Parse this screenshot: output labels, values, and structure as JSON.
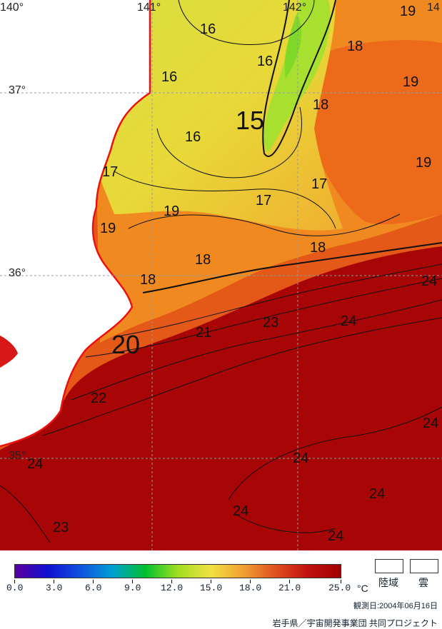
{
  "map": {
    "longitude_labels": [
      "140°",
      "141°",
      "142°",
      "14"
    ],
    "latitude_labels": [
      "37°",
      "36°",
      "35°"
    ],
    "isotherm_labels": [
      "16",
      "16",
      "16",
      "16",
      "15",
      "18",
      "18",
      "19",
      "19",
      "19",
      "17",
      "17",
      "17",
      "19",
      "19",
      "18",
      "18",
      "18",
      "24",
      "21",
      "20",
      "23",
      "24",
      "22",
      "24",
      "24",
      "24",
      "24",
      "24",
      "24",
      "23"
    ]
  },
  "legend": {
    "colorbar_ticks": [
      "0.0",
      "3.0",
      "6.0",
      "9.0",
      "12.0",
      "15.0",
      "18.0",
      "21.0",
      "25.0"
    ],
    "unit": "°C",
    "land_label": "陸域",
    "cloud_label": "雲",
    "colorbar_stops": [
      "#5a00a0",
      "#1010d0",
      "#1050e0",
      "#00a0d0",
      "#00c030",
      "#a0e020",
      "#f0e040",
      "#f0a030",
      "#e05020",
      "#c01010",
      "#a00000"
    ]
  },
  "footer": {
    "observation_date": "観測日:2004年06月16日",
    "credit": "岩手県／宇宙開発事業団 共同プロジェクト"
  }
}
